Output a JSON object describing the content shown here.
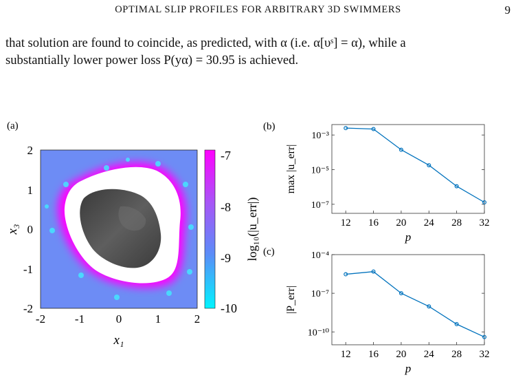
{
  "header": {
    "running_title": "OPTIMAL SLIP PROFILES FOR ARBITRARY 3D SWIMMERS",
    "page_number": "9"
  },
  "body": {
    "line1": "that solution are found to coincide, as predicted, with α (i.e.  α[υˢ] = α), while a",
    "line2": "substantially lower power loss P(yα) = 30.95 is achieved."
  },
  "figure": {
    "panel_a": {
      "label": "(a)",
      "xlabel": "x₁",
      "ylabel": "x₃",
      "xticks": [
        "-2",
        "-1",
        "0",
        "1",
        "2"
      ],
      "yticks": [
        "2",
        "1",
        "0",
        "-1",
        "-2"
      ],
      "colorbar_label": "log₁₀(|u_err|)",
      "colorbar_ticks": [
        "-7",
        "-8",
        "-9",
        "-10"
      ],
      "colors": {
        "low": "#00f0ff",
        "mid": "#6d8cf5",
        "high": "#ff00ff",
        "body": "#505050"
      }
    },
    "panel_b": {
      "label": "(b)"
    },
    "panel_c": {
      "label": "(c)"
    }
  },
  "chart_data": [
    {
      "type": "line",
      "panel": "(b)",
      "x": [
        12,
        16,
        20,
        24,
        28,
        32
      ],
      "y": [
        0.0025,
        0.0022,
        0.00014,
        1.8e-05,
        1.1e-06,
        1.3e-07
      ],
      "xlabel": "p",
      "ylabel": "max |u_err|",
      "yscale": "log",
      "xlim": [
        10,
        32
      ],
      "ylim": [
        3e-08,
        0.004
      ],
      "xticks": [
        "12",
        "16",
        "20",
        "24",
        "28",
        "32"
      ],
      "yticks": [
        "10⁻³",
        "10⁻⁵",
        "10⁻⁷"
      ],
      "color": "#0072bd"
    },
    {
      "type": "line",
      "panel": "(c)",
      "x": [
        12,
        16,
        20,
        24,
        28,
        32
      ],
      "y": [
        3e-06,
        4.8e-06,
        1e-07,
        9.5e-09,
        4e-10,
        4e-11
      ],
      "xlabel": "p",
      "ylabel": "|P_err|",
      "yscale": "log",
      "xlim": [
        10,
        32
      ],
      "ylim": [
        1e-11,
        0.0001
      ],
      "xticks": [
        "12",
        "16",
        "20",
        "24",
        "28",
        "32"
      ],
      "yticks": [
        "10⁻⁴",
        "10⁻⁷",
        "10⁻¹⁰"
      ],
      "color": "#0072bd"
    }
  ]
}
